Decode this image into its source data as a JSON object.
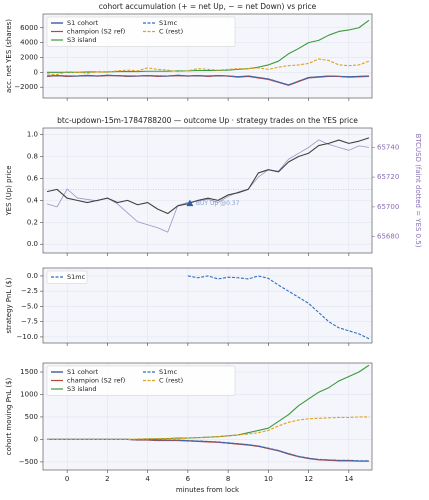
{
  "chart_data": [
    {
      "type": "line",
      "title": "cohort accumulation (+ = net Up, − = net Down) vs price",
      "ylabel": "acc. net YES (shares)",
      "xlim": [
        -1.2,
        15.15
      ],
      "ylim": [
        -3450,
        7850
      ],
      "yticks": [
        {
          "value": -2000,
          "label": "−2000"
        },
        0,
        2000,
        4000,
        6000
      ],
      "grid": true,
      "legend": "upper left",
      "x": [
        -1,
        -0.5,
        0,
        0.5,
        1,
        1.5,
        2,
        2.5,
        3,
        3.5,
        4,
        4.5,
        5,
        5.5,
        6,
        6.5,
        7,
        7.5,
        8,
        8.5,
        9,
        9.5,
        10,
        10.5,
        11,
        11.5,
        12,
        12.5,
        13,
        13.5,
        14,
        14.5,
        15
      ],
      "series": [
        {
          "name": "S1 cohort",
          "color": "#1f3f8f",
          "dash": "solid",
          "values": [
            -500,
            -450,
            -500,
            -500,
            -450,
            -500,
            -400,
            -450,
            -500,
            -500,
            -450,
            -500,
            -500,
            -400,
            -500,
            -450,
            -500,
            -450,
            -500,
            -600,
            -500,
            -700,
            -900,
            -1300,
            -1700,
            -1200,
            -700,
            -600,
            -500,
            -550,
            -600,
            -550,
            -500
          ]
        },
        {
          "name": "champion (S2 ref)",
          "color": "#b5473a",
          "dash": "solid",
          "values": [
            -550,
            -450,
            -550,
            -500,
            -400,
            -500,
            -450,
            -450,
            -550,
            -500,
            -450,
            -550,
            -500,
            -450,
            -500,
            -450,
            -550,
            -450,
            -500,
            -650,
            -550,
            -750,
            -950,
            -1350,
            -1750,
            -1250,
            -750,
            -650,
            -550,
            -550,
            -650,
            -600,
            -550
          ]
        },
        {
          "name": "S3 island",
          "color": "#3a9a3a",
          "dash": "solid",
          "values": [
            0,
            0,
            0,
            0,
            50,
            50,
            50,
            100,
            100,
            100,
            150,
            150,
            150,
            200,
            200,
            250,
            250,
            250,
            300,
            400,
            500,
            700,
            1000,
            1500,
            2500,
            3200,
            4000,
            4300,
            5000,
            5500,
            5700,
            6000,
            7000
          ]
        },
        {
          "name": "S1mc",
          "color": "#2f6fc0",
          "dash": "dashed",
          "values": [
            -480,
            -440,
            -480,
            -490,
            -440,
            -480,
            -400,
            -440,
            -480,
            -490,
            -440,
            -480,
            -490,
            -400,
            -480,
            -440,
            -490,
            -440,
            -480,
            -590,
            -490,
            -690,
            -880,
            -1280,
            -1680,
            -1190,
            -690,
            -590,
            -490,
            -540,
            -590,
            -540,
            -490
          ]
        },
        {
          "name": "C (rest)",
          "color": "#e0a020",
          "dash": "dashed",
          "values": [
            -200,
            -300,
            100,
            0,
            -100,
            50,
            0,
            200,
            300,
            200,
            600,
            400,
            300,
            100,
            200,
            500,
            400,
            300,
            400,
            500,
            500,
            600,
            400,
            700,
            900,
            1000,
            1200,
            1800,
            1600,
            1000,
            900,
            1000,
            1500
          ]
        }
      ]
    },
    {
      "type": "line",
      "title": "btc-updown-15m-1784788200 — outcome Up · strategy trades on the YES price",
      "ylabel": "YES (Up) price",
      "y2label": "BTCUSD (faint dotted = YES 0.5)",
      "xlim": [
        -1.2,
        15.15
      ],
      "ylim": [
        -0.08,
        1.06
      ],
      "y2lim": [
        65669,
        65753
      ],
      "yticks": [
        {
          "value": 0,
          "label": "0.0"
        },
        0.2,
        0.4,
        0.6,
        0.8,
        {
          "value": 1,
          "label": "1.0"
        }
      ],
      "y2ticks": [
        65680,
        65700,
        65720,
        65740
      ],
      "grid": true,
      "hline": 0.5,
      "x": [
        -1,
        -0.5,
        0,
        0.5,
        1,
        1.5,
        2,
        2.5,
        3,
        3.5,
        4,
        4.5,
        5,
        5.5,
        6,
        6.5,
        7,
        7.5,
        8,
        8.5,
        9,
        9.5,
        10,
        10.5,
        11,
        11.5,
        12,
        12.5,
        13,
        13.5,
        14,
        14.5,
        15
      ],
      "series": [
        {
          "color": "#9f93c6",
          "dash": "solid",
          "axis": "y2",
          "values": [
            65702,
            65700,
            65712,
            65706,
            65705,
            65704,
            65706,
            65702,
            65696,
            65690,
            65688,
            65686,
            65683,
            65701,
            65703,
            65704,
            65705,
            65703,
            65707,
            65710,
            65712,
            65720,
            65725,
            65724,
            65732,
            65736,
            65740,
            65745,
            65742,
            65740,
            65738,
            65741,
            65740
          ]
        },
        {
          "color": "#404040",
          "dash": "solid",
          "values": [
            0.48,
            0.5,
            0.42,
            0.4,
            0.38,
            0.4,
            0.42,
            0.38,
            0.4,
            0.36,
            0.38,
            0.32,
            0.28,
            0.35,
            0.37,
            0.4,
            0.42,
            0.4,
            0.45,
            0.47,
            0.5,
            0.65,
            0.68,
            0.66,
            0.75,
            0.8,
            0.83,
            0.9,
            0.92,
            0.95,
            0.92,
            0.94,
            0.97
          ]
        }
      ],
      "trades": {
        "x": [
          6.1
        ],
        "values": [
          0.37
        ],
        "color": "#2f5fa8",
        "label": "BUY Up @0.37"
      }
    },
    {
      "type": "line",
      "ylabel": "strategy PnL ($)",
      "xlim": [
        -1.2,
        15.15
      ],
      "ylim": [
        -11,
        1.3
      ],
      "yticks": [
        {
          "value": -10,
          "label": "−10.0"
        },
        {
          "value": -7.5,
          "label": "−7.5"
        },
        {
          "value": -5,
          "label": "−5.0"
        },
        {
          "value": -2.5,
          "label": "−2.5"
        },
        {
          "value": 0,
          "label": "0.0"
        }
      ],
      "grid": true,
      "legend": "upper left",
      "x": [
        -1,
        -0.5,
        0,
        0.5,
        1,
        1.5,
        2,
        2.5,
        3,
        3.5,
        4,
        4.5,
        5,
        5.5,
        6,
        6.5,
        7,
        7.5,
        8,
        8.5,
        9,
        9.5,
        10,
        10.5,
        11,
        11.5,
        12,
        12.5,
        13,
        13.5,
        14,
        14.5,
        15
      ],
      "series": [
        {
          "name": "S1mc",
          "color": "#2f6fc0",
          "dash": "dashed",
          "values": [
            null,
            null,
            null,
            null,
            null,
            null,
            null,
            null,
            null,
            null,
            null,
            null,
            null,
            null,
            0,
            -0.3,
            0,
            -0.5,
            -0.2,
            -0.3,
            -0.5,
            0,
            -0.4,
            -1.5,
            -2.5,
            -3.5,
            -4.5,
            -6,
            -7.5,
            -8.5,
            -9,
            -9.5,
            -10.3
          ]
        }
      ]
    },
    {
      "type": "line",
      "ylabel": "cohort moving PnL ($)",
      "xlabel": "minutes from lock",
      "xlim": [
        -1.2,
        15.15
      ],
      "ylim": [
        -680,
        1700
      ],
      "xticks": [
        0,
        2,
        4,
        6,
        8,
        10,
        12,
        14
      ],
      "yticks": [
        {
          "value": -500,
          "label": "−500"
        },
        0,
        500,
        1000,
        1500
      ],
      "grid": true,
      "legend": "upper left",
      "x": [
        -1,
        -0.5,
        0,
        0.5,
        1,
        1.5,
        2,
        2.5,
        3,
        3.5,
        4,
        4.5,
        5,
        5.5,
        6,
        6.5,
        7,
        7.5,
        8,
        8.5,
        9,
        9.5,
        10,
        10.5,
        11,
        11.5,
        12,
        12.5,
        13,
        13.5,
        14,
        14.5,
        15
      ],
      "series": [
        {
          "name": "S1 cohort",
          "color": "#1f3f8f",
          "dash": "solid",
          "values": [
            0,
            0,
            0,
            0,
            0,
            0,
            0,
            0,
            0,
            -10,
            -10,
            -20,
            -20,
            -20,
            -30,
            -40,
            -50,
            -60,
            -80,
            -100,
            -120,
            -150,
            -200,
            -250,
            -320,
            -380,
            -420,
            -450,
            -460,
            -470,
            -470,
            -480,
            -480
          ]
        },
        {
          "name": "champion (S2 ref)",
          "color": "#b5473a",
          "dash": "solid",
          "values": [
            0,
            0,
            0,
            0,
            0,
            0,
            0,
            0,
            0,
            -15,
            -15,
            -25,
            -25,
            -25,
            -35,
            -45,
            -55,
            -65,
            -85,
            -105,
            -125,
            -155,
            -205,
            -255,
            -325,
            -385,
            -425,
            -455,
            -465,
            -475,
            -475,
            -485,
            -485
          ]
        },
        {
          "name": "S3 island",
          "color": "#3a9a3a",
          "dash": "solid",
          "values": [
            0,
            0,
            0,
            0,
            0,
            0,
            0,
            0,
            0,
            0,
            10,
            10,
            20,
            30,
            30,
            40,
            50,
            60,
            80,
            100,
            150,
            200,
            250,
            400,
            550,
            750,
            900,
            1050,
            1150,
            1300,
            1400,
            1500,
            1650
          ]
        },
        {
          "name": "S1mc",
          "color": "#2f6fc0",
          "dash": "dashed",
          "values": [
            0,
            0,
            0,
            0,
            0,
            0,
            0,
            0,
            0,
            -5,
            -5,
            -15,
            -15,
            -15,
            -25,
            -35,
            -45,
            -55,
            -75,
            -95,
            -115,
            -145,
            -195,
            -245,
            -315,
            -375,
            -415,
            -445,
            -455,
            -465,
            -465,
            -475,
            -475
          ]
        },
        {
          "name": "C (rest)",
          "color": "#e0a020",
          "dash": "dashed",
          "values": [
            0,
            0,
            0,
            0,
            0,
            0,
            0,
            0,
            0,
            10,
            10,
            20,
            20,
            20,
            30,
            40,
            50,
            60,
            80,
            100,
            120,
            150,
            200,
            300,
            380,
            430,
            460,
            470,
            480,
            490,
            490,
            500,
            500
          ]
        }
      ]
    }
  ]
}
